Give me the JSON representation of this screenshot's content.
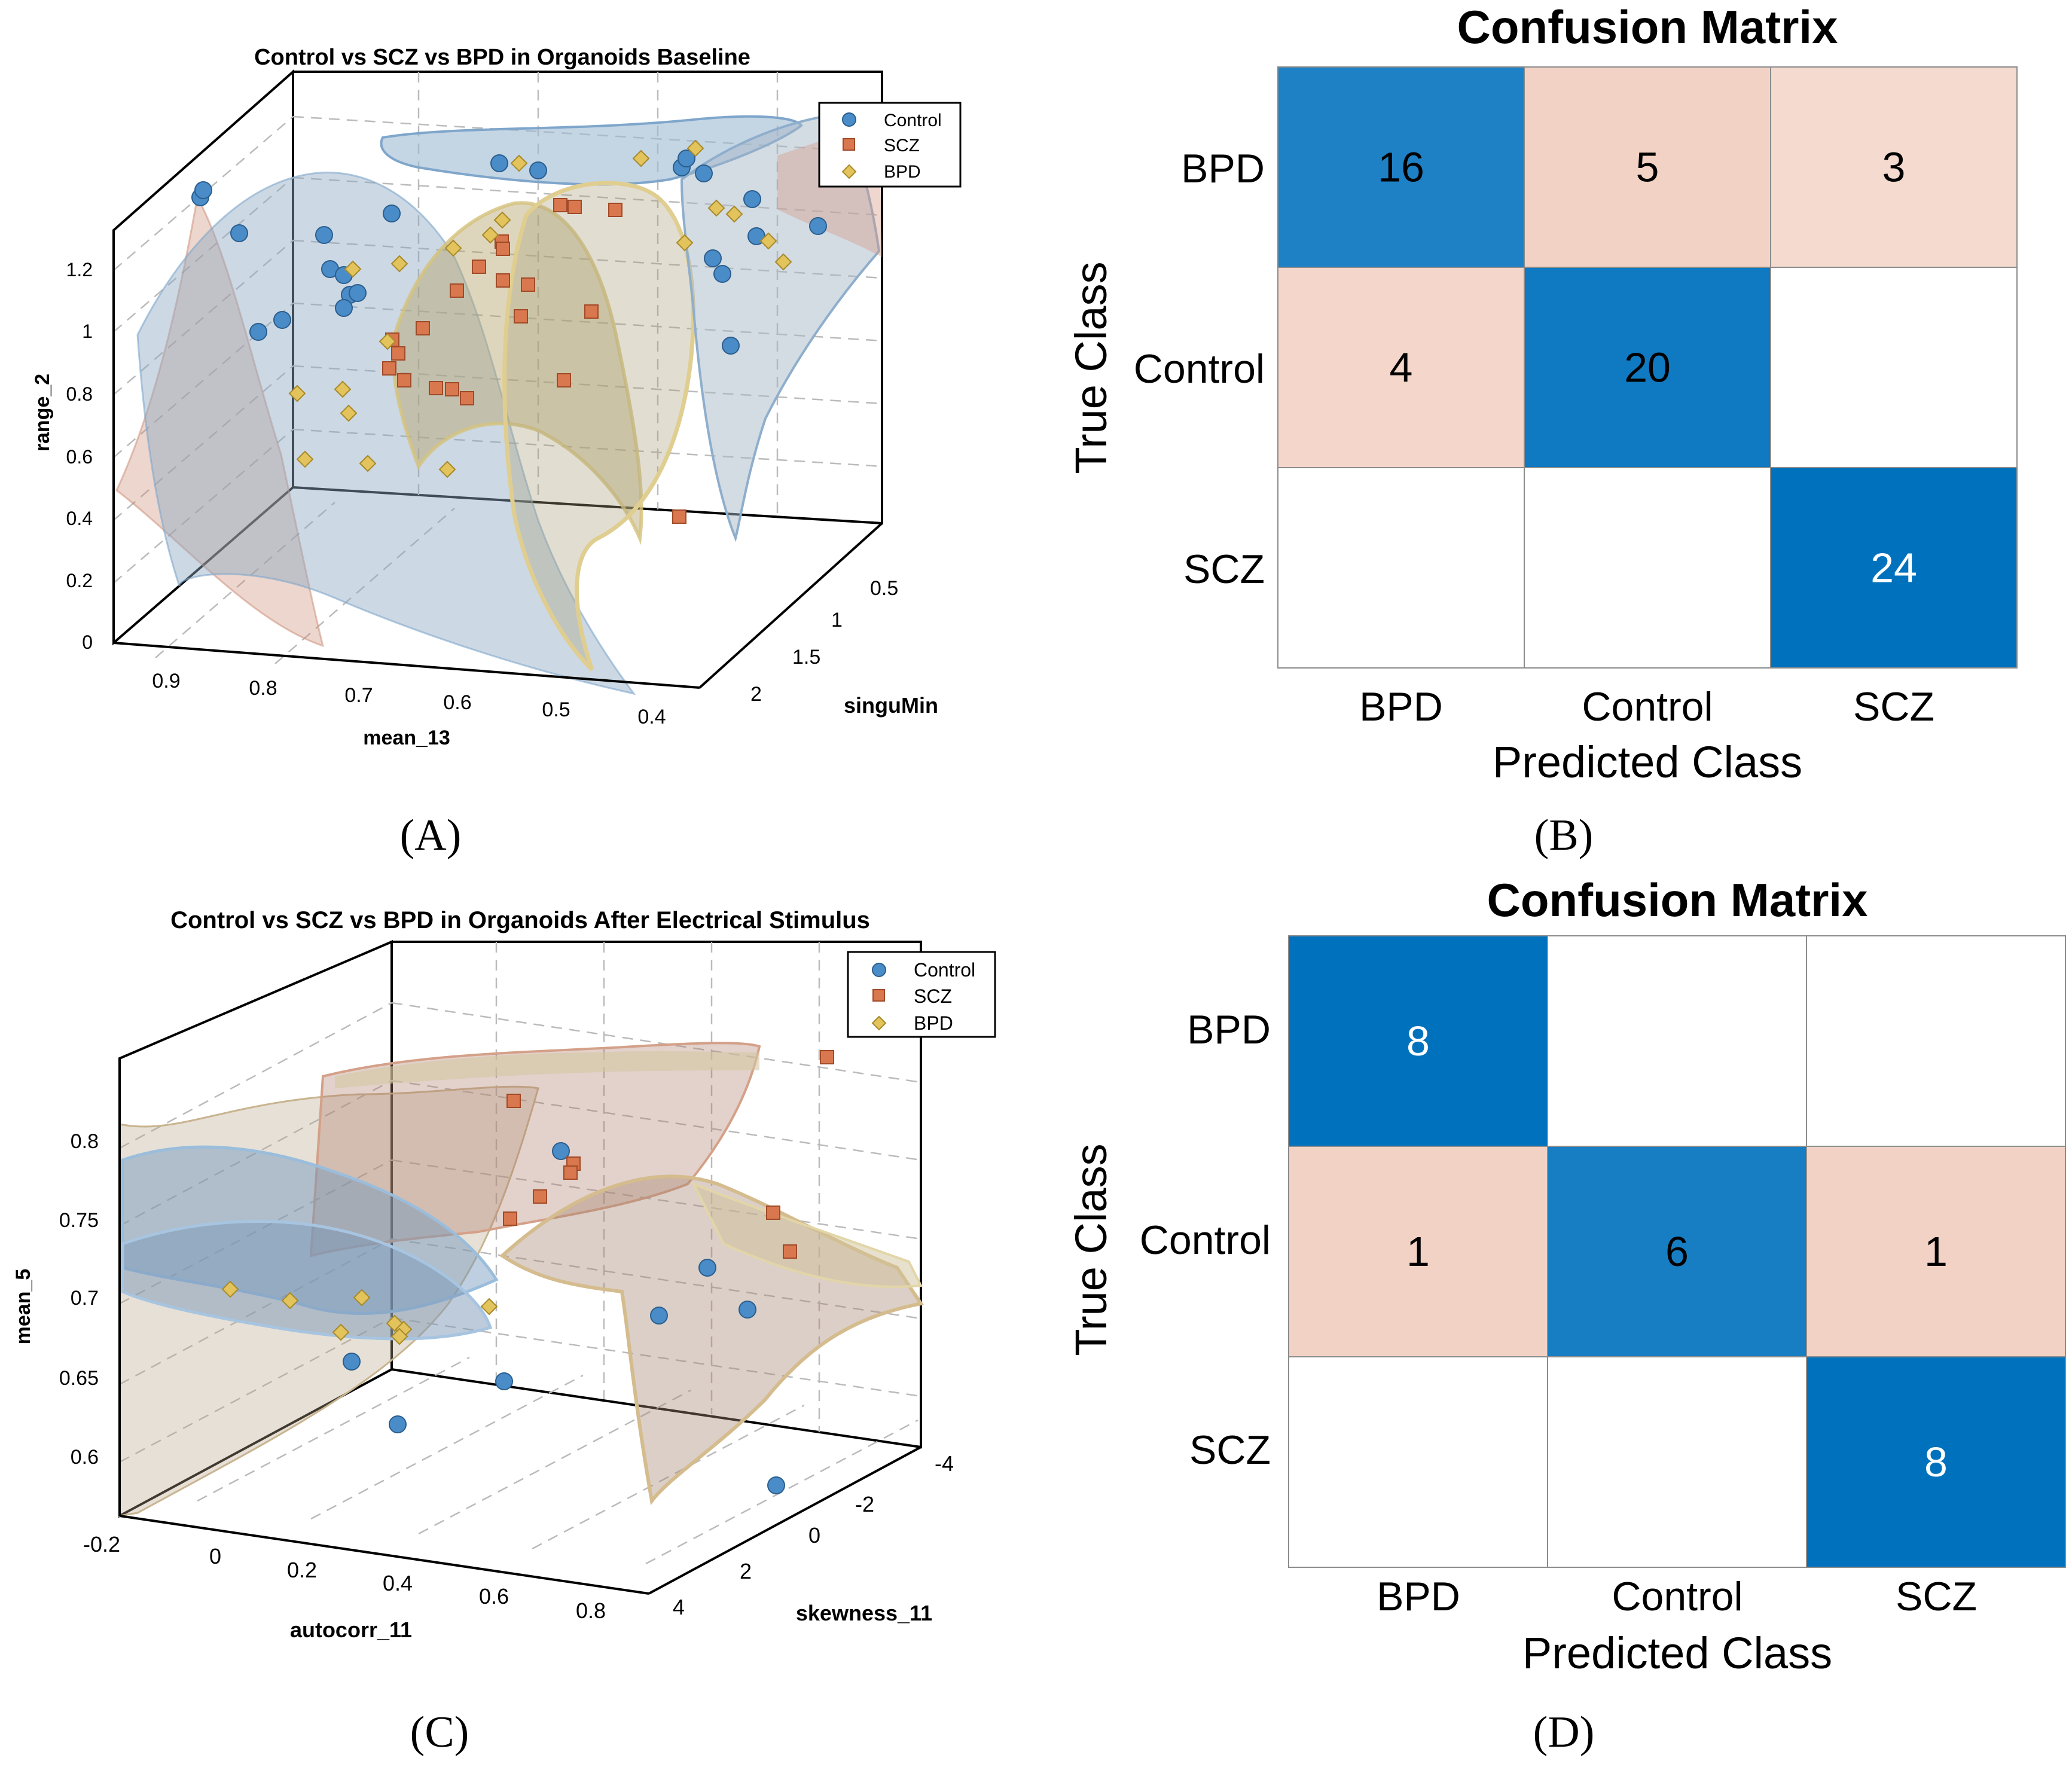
{
  "chart_data": [
    {
      "type": "scatter",
      "panel": "(A)",
      "title": "Control vs SCZ vs BPD in Organoids Baseline",
      "xlabel": "mean_13",
      "ylabel": "singuMin",
      "zlabel": "range_2",
      "xticks": [
        "0.9",
        "0.8",
        "0.7",
        "0.6",
        "0.5",
        "0.4"
      ],
      "yticks": [
        "0.5",
        "1",
        "1.5",
        "2"
      ],
      "zticks": [
        "0",
        "0.2",
        "0.4",
        "0.6",
        "0.8",
        "1",
        "1.2"
      ],
      "legend": [
        {
          "label": "Control",
          "color": "#3E83C0",
          "marker": "circle"
        },
        {
          "label": "SCZ",
          "color": "#D9784F",
          "marker": "square"
        },
        {
          "label": "BPD",
          "color": "#E3C45C",
          "marker": "diamond"
        }
      ],
      "legend_position": "top-right",
      "grid": true,
      "decision_surfaces": true
    },
    {
      "type": "heatmap",
      "panel": "(B)",
      "title": "Confusion Matrix",
      "xlabel": "Predicted Class",
      "ylabel": "True Class",
      "categories": [
        "BPD",
        "Control",
        "SCZ"
      ],
      "cells": [
        [
          "16",
          "5",
          "3"
        ],
        [
          "4",
          "20",
          ""
        ],
        [
          "",
          "",
          "24"
        ]
      ],
      "values": [
        [
          16,
          5,
          3
        ],
        [
          4,
          20,
          0
        ],
        [
          0,
          0,
          24
        ]
      ]
    },
    {
      "type": "scatter",
      "panel": "(C)",
      "title": "Control vs SCZ vs BPD in Organoids After Electrical Stimulus",
      "xlabel": "autocorr_11",
      "ylabel": "skewness_11",
      "zlabel": "mean_5",
      "xticks": [
        "-0.2",
        "0",
        "0.2",
        "0.4",
        "0.6",
        "0.8"
      ],
      "yticks": [
        "-4",
        "-2",
        "0",
        "2",
        "4"
      ],
      "zticks": [
        "0.6",
        "0.65",
        "0.7",
        "0.75",
        "0.8"
      ],
      "legend": [
        {
          "label": "Control",
          "color": "#3E83C0",
          "marker": "circle"
        },
        {
          "label": "SCZ",
          "color": "#D9784F",
          "marker": "square"
        },
        {
          "label": "BPD",
          "color": "#E3C45C",
          "marker": "diamond"
        }
      ],
      "legend_position": "top-right",
      "grid": true,
      "decision_surfaces": true
    },
    {
      "type": "heatmap",
      "panel": "(D)",
      "title": "Confusion Matrix",
      "xlabel": "Predicted Class",
      "ylabel": "True Class",
      "categories": [
        "BPD",
        "Control",
        "SCZ"
      ],
      "cells": [
        [
          "8",
          "",
          ""
        ],
        [
          "1",
          "6",
          "1"
        ],
        [
          "",
          "",
          "8"
        ]
      ],
      "values": [
        [
          8,
          0,
          0
        ],
        [
          1,
          6,
          1
        ],
        [
          0,
          0,
          8
        ]
      ]
    }
  ],
  "colors": {
    "control": "#3E83C0",
    "scz": "#D9784F",
    "bpd": "#E3C45C",
    "diag_max": "#0072BD",
    "off_diag": "#F6DCD2",
    "grid": "#CCCCCC"
  }
}
